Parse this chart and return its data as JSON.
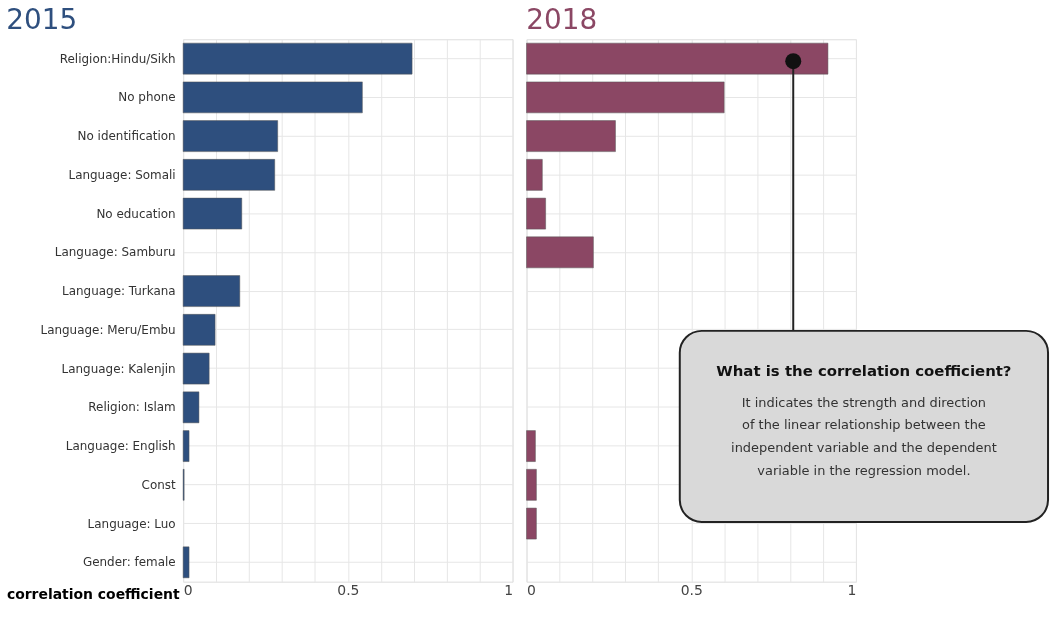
{
  "chart_data": [
    {
      "type": "bar",
      "orientation": "horizontal",
      "title": "2015",
      "xlabel": "correlation coefficient",
      "categories": [
        "Religion:Hindu/Sikh",
        "No phone",
        "No identification",
        "Language: Somali",
        "No education",
        "Language: Samburu",
        "Language: Turkana",
        "Language: Meru/Embu",
        "Language: Kalenjin",
        "Religion: Islam",
        "Language: English",
        "Const",
        "Language: Luo",
        "Gender: female"
      ],
      "series": [
        {
          "color": "#2e4f7e",
          "values": [
            0.695,
            0.544,
            0.287,
            0.278,
            0.178,
            null,
            0.172,
            0.097,
            0.079,
            0.048,
            0.018,
            0.003,
            null,
            0.018
          ]
        }
      ],
      "xlim": [
        0,
        1
      ],
      "xticks": [
        0,
        {
          "value": 0.1,
          "label": null
        },
        {
          "value": 0.2,
          "label": null
        },
        {
          "value": 0.3,
          "label": null
        },
        {
          "value": 0.4,
          "label": null
        },
        0.5,
        {
          "value": 0.6,
          "label": null
        },
        {
          "value": 0.7,
          "label": null
        },
        {
          "value": 0.8,
          "label": null
        },
        {
          "value": 0.9,
          "label": null
        },
        1
      ],
      "grid": true
    },
    {
      "type": "bar",
      "orientation": "horizontal",
      "title": "2018",
      "tick_labels": "x",
      "series": [
        {
          "color": "#8b4764",
          "values": [
            0.915,
            0.6,
            0.27,
            0.048,
            0.058,
            0.203,
            null,
            null,
            null,
            null,
            0.027,
            0.03,
            0.03,
            null
          ]
        }
      ],
      "xlim": [
        0,
        1
      ],
      "xticks": [
        0,
        {
          "value": 0.1,
          "label": null
        },
        {
          "value": 0.2,
          "label": null
        },
        {
          "value": 0.3,
          "label": null
        },
        {
          "value": 0.4,
          "label": null
        },
        0.5,
        {
          "value": 0.6,
          "label": null
        },
        {
          "value": 0.7,
          "label": null
        },
        {
          "value": 0.8,
          "label": null
        },
        {
          "value": 0.9,
          "label": null
        },
        1
      ],
      "grid": true,
      "annotations": [
        "What is the correlation coefficient?",
        "It indicates the strength and direction of the linear relationship between the independent variable and the dependent variable in the regression model."
      ]
    }
  ]
}
